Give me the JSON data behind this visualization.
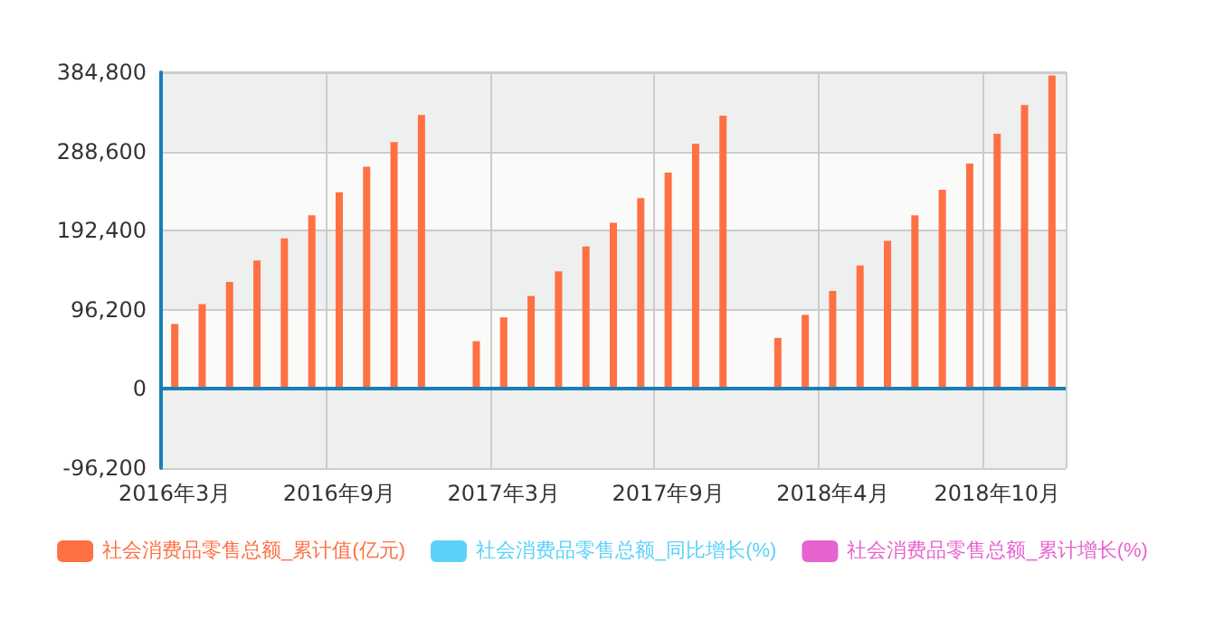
{
  "chart_data": {
    "type": "bar",
    "categories": [
      "2016年3月",
      null,
      null,
      null,
      null,
      null,
      "2016年9月",
      null,
      null,
      null,
      null,
      null,
      "2017年3月",
      null,
      null,
      null,
      null,
      null,
      "2017年9月",
      null,
      null,
      null,
      null,
      null,
      "2018年4月",
      null,
      null,
      null,
      null,
      null,
      "2018年10月",
      null,
      null
    ],
    "series": [
      {
        "name": "社会消费品零售总额_累计值(亿元)",
        "color": "#ff7043",
        "values": [
          79000,
          103000,
          130000,
          156000,
          183000,
          211000,
          239000,
          270000,
          300000,
          333000,
          null,
          58000,
          87000,
          113000,
          143000,
          173000,
          202000,
          232000,
          263000,
          298000,
          332000,
          null,
          62000,
          90000,
          119000,
          150000,
          180000,
          211000,
          242000,
          274000,
          310000,
          345000,
          381000
        ]
      },
      {
        "name": "社会消费品零售总额_同比增长(%)",
        "color": "#5bd1fa",
        "values": [
          null,
          null,
          null,
          null,
          null,
          null,
          null,
          null,
          null,
          null,
          null,
          null,
          null,
          null,
          null,
          null,
          null,
          null,
          null,
          null,
          null,
          null,
          null,
          null,
          null,
          null,
          null,
          null,
          null,
          null,
          null,
          null,
          null
        ]
      },
      {
        "name": "社会消费品零售总额_累计增长(%)",
        "color": "#e862cf",
        "values": [
          null,
          null,
          null,
          null,
          null,
          null,
          null,
          null,
          null,
          null,
          null,
          null,
          null,
          null,
          null,
          null,
          null,
          null,
          null,
          null,
          null,
          null,
          null,
          null,
          null,
          null,
          null,
          null,
          null,
          null,
          null,
          null,
          null
        ]
      }
    ],
    "ylim": [
      -96200,
      384800
    ],
    "yticks": [
      {
        "value": -96200,
        "label": "-96,200"
      },
      {
        "value": 0,
        "label": "0"
      },
      {
        "value": 96200,
        "label": "96,200"
      },
      {
        "value": 192400,
        "label": "192,400"
      },
      {
        "value": 288600,
        "label": "288,600"
      },
      {
        "value": 384800,
        "label": "384,800"
      }
    ],
    "ref_lines": [
      {
        "axis": "y",
        "value": 0,
        "color": "#1a7fb5",
        "line_style": "solid"
      }
    ],
    "grid": true,
    "legend": "bottom"
  }
}
